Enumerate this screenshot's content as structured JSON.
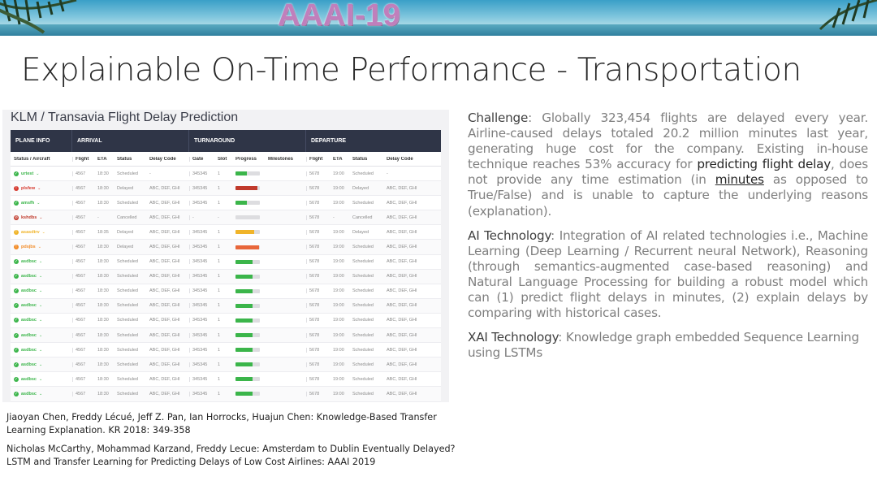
{
  "banner": {
    "title": "AAAI-19"
  },
  "slide": {
    "title": "Explainable On-Time Performance - Transportation"
  },
  "dashboard": {
    "title": "KLM / Transavia Flight Delay Prediction",
    "section_headers": [
      "PLANE INFO",
      "ARRIVAL",
      "TURNAROUND",
      "DEPARTURE"
    ],
    "columns": {
      "status": "Status / Aircraft",
      "arr_flight": "Flight",
      "arr_eta": "ETA",
      "arr_status": "Status",
      "arr_delay": "Delay Code",
      "gate": "Gate",
      "slot": "Slot",
      "progress": "Progress",
      "milestones": "Milestones",
      "dep_flight": "Flight",
      "dep_eta": "ETA",
      "dep_status": "Status",
      "dep_delay": "Delay Code"
    },
    "rows": [
      {
        "state": "ok",
        "code": "urtest",
        "flt": "4567",
        "eta": "18:30",
        "st": "Scheduled",
        "dc": "-",
        "gate": "345345",
        "slot": "1",
        "progress": 0.45,
        "bar": "#3bb54a",
        "dflt": "5678",
        "deta": "19:00",
        "dst": "Scheduled",
        "ddc": "-"
      },
      {
        "state": "bad",
        "code": "plsfew",
        "flt": "4567",
        "eta": "18:30",
        "st": "Delayed",
        "dc": "ABC, DEF, GHI",
        "gate": "345345",
        "slot": "1",
        "progress": 0.9,
        "bar": "#c0392b",
        "dflt": "5678",
        "deta": "19:00",
        "dst": "Delayed",
        "ddc": "ABC, DEF, GHI"
      },
      {
        "state": "ok",
        "code": "amsfh",
        "flt": "4567",
        "eta": "18:30",
        "st": "Scheduled",
        "dc": "ABC, DEF, GHI",
        "gate": "345345",
        "slot": "1",
        "progress": 0.45,
        "bar": "#3bb54a",
        "dflt": "5678",
        "deta": "19:00",
        "dst": "Scheduled",
        "ddc": "ABC, DEF, GHI"
      },
      {
        "state": "cancel",
        "code": "kshdbs",
        "flt": "4567",
        "eta": "-",
        "st": "Cancelled",
        "dc": "ABC, DEF, GHI",
        "gate": "-",
        "slot": "-",
        "progress": 0.0,
        "bar": "#d5d5d8",
        "dflt": "5678",
        "deta": "-",
        "dst": "Cancelled",
        "ddc": "ABC, DEF, GHI"
      },
      {
        "state": "warn",
        "code": "asasdtrv",
        "flt": "4567",
        "eta": "18:35",
        "st": "Delayed",
        "dc": "ABC, DEF, GHI",
        "gate": "345345",
        "slot": "1",
        "progress": 0.75,
        "bar": "#f0b429",
        "dflt": "5678",
        "deta": "19:00",
        "dst": "Delayed",
        "ddc": "ABC, DEF, GHI"
      },
      {
        "state": "warn2",
        "code": "pdsjbs",
        "flt": "4567",
        "eta": "18:30",
        "st": "Delayed",
        "dc": "ABC, DEF, GHI",
        "gate": "345345",
        "slot": "1",
        "progress": 0.95,
        "bar": "#e8663a",
        "dflt": "5678",
        "deta": "19:00",
        "dst": "Scheduled",
        "ddc": "ABC, DEF, GHI"
      },
      {
        "state": "ok",
        "code": "asdbsc",
        "flt": "4567",
        "eta": "18:30",
        "st": "Scheduled",
        "dc": "ABC, DEF, GHI",
        "gate": "345345",
        "slot": "1",
        "progress": 0.7,
        "bar": "#3bb54a",
        "dflt": "5678",
        "deta": "19:00",
        "dst": "Scheduled",
        "ddc": "ABC, DEF, GHI"
      },
      {
        "state": "ok",
        "code": "asdbsc",
        "flt": "4567",
        "eta": "18:30",
        "st": "Scheduled",
        "dc": "ABC, DEF, GHI",
        "gate": "345345",
        "slot": "1",
        "progress": 0.7,
        "bar": "#3bb54a",
        "dflt": "5678",
        "deta": "19:00",
        "dst": "Scheduled",
        "ddc": "ABC, DEF, GHI"
      },
      {
        "state": "ok",
        "code": "asdbsc",
        "flt": "4567",
        "eta": "18:30",
        "st": "Scheduled",
        "dc": "ABC, DEF, GHI",
        "gate": "345345",
        "slot": "1",
        "progress": 0.7,
        "bar": "#3bb54a",
        "dflt": "5678",
        "deta": "19:00",
        "dst": "Scheduled",
        "ddc": "ABC, DEF, GHI"
      },
      {
        "state": "ok",
        "code": "asdbsc",
        "flt": "4567",
        "eta": "18:30",
        "st": "Scheduled",
        "dc": "ABC, DEF, GHI",
        "gate": "345345",
        "slot": "1",
        "progress": 0.7,
        "bar": "#3bb54a",
        "dflt": "5678",
        "deta": "19:00",
        "dst": "Scheduled",
        "ddc": "ABC, DEF, GHI"
      },
      {
        "state": "ok",
        "code": "asdbsc",
        "flt": "4567",
        "eta": "18:30",
        "st": "Scheduled",
        "dc": "ABC, DEF, GHI",
        "gate": "345345",
        "slot": "1",
        "progress": 0.7,
        "bar": "#3bb54a",
        "dflt": "5678",
        "deta": "19:00",
        "dst": "Scheduled",
        "ddc": "ABC, DEF, GHI"
      },
      {
        "state": "ok",
        "code": "asdbsc",
        "flt": "4567",
        "eta": "18:30",
        "st": "Scheduled",
        "dc": "ABC, DEF, GHI",
        "gate": "345345",
        "slot": "1",
        "progress": 0.7,
        "bar": "#3bb54a",
        "dflt": "5678",
        "deta": "19:00",
        "dst": "Scheduled",
        "ddc": "ABC, DEF, GHI"
      },
      {
        "state": "ok",
        "code": "asdbsc",
        "flt": "4567",
        "eta": "18:30",
        "st": "Scheduled",
        "dc": "ABC, DEF, GHI",
        "gate": "345345",
        "slot": "1",
        "progress": 0.7,
        "bar": "#3bb54a",
        "dflt": "5678",
        "deta": "19:00",
        "dst": "Scheduled",
        "ddc": "ABC, DEF, GHI"
      },
      {
        "state": "ok",
        "code": "asdbsc",
        "flt": "4567",
        "eta": "18:30",
        "st": "Scheduled",
        "dc": "ABC, DEF, GHI",
        "gate": "345345",
        "slot": "1",
        "progress": 0.7,
        "bar": "#3bb54a",
        "dflt": "5678",
        "deta": "19:00",
        "dst": "Scheduled",
        "ddc": "ABC, DEF, GHI"
      },
      {
        "state": "ok",
        "code": "asdbsc",
        "flt": "4567",
        "eta": "18:30",
        "st": "Scheduled",
        "dc": "ABC, DEF, GHI",
        "gate": "345345",
        "slot": "1",
        "progress": 0.7,
        "bar": "#3bb54a",
        "dflt": "5678",
        "deta": "19:00",
        "dst": "Scheduled",
        "ddc": "ABC, DEF, GHI"
      },
      {
        "state": "ok",
        "code": "asdbsc",
        "flt": "4567",
        "eta": "18:30",
        "st": "Scheduled",
        "dc": "ABC, DEF, GHI",
        "gate": "345345",
        "slot": "1",
        "progress": 0.7,
        "bar": "#3bb54a",
        "dflt": "5678",
        "deta": "19:00",
        "dst": "Scheduled",
        "ddc": "ABC, DEF, GHI"
      }
    ],
    "status_colors": {
      "ok": "#3bb54a",
      "bad": "#d63a2f",
      "cancel": "#c0392b",
      "warn": "#f0b429",
      "warn2": "#f28c28"
    }
  },
  "right_text": {
    "challenge": {
      "label": "Challenge",
      "text_a": ": Globally 323,454 flights are delayed every year. Airline-caused delays totaled 20.2 million minutes last year, generating huge cost for the company. Existing in-house technique reaches 53% accuracy for ",
      "highlight": "predicting flight delay",
      "text_b": ", does not provide any time estimation (in ",
      "underline": "minutes",
      "text_c": " as opposed to True/False) and is unable to capture the underlying reasons (explanation)."
    },
    "ai_technology": {
      "label": "AI Technology",
      "text": ": Integration of AI related technologies i.e., Machine Learning (Deep Learning / Recurrent neural Network), Reasoning (through semantics-augmented case-based reasoning) and Natural Language Processing for building a robust model which can (1) predict flight delays in minutes, (2) explain delays by comparing with historical cases."
    },
    "xai_technology": {
      "label": "XAI Technology",
      "text": ": Knowledge graph embedded Sequence Learning using LSTMs"
    }
  },
  "references": [
    "Jiaoyan Chen, Freddy Lécué, Jeff Z. Pan, Ian Horrocks, Huajun Chen: Knowledge-Based Transfer Learning Explanation. KR 2018: 349-358",
    "Nicholas McCarthy, Mohammad Karzand, Freddy Lecue: Amsterdam to Dublin Eventually Delayed? LSTM and Transfer Learning for Predicting Delays of Low Cost Airlines: AAAI 2019"
  ]
}
